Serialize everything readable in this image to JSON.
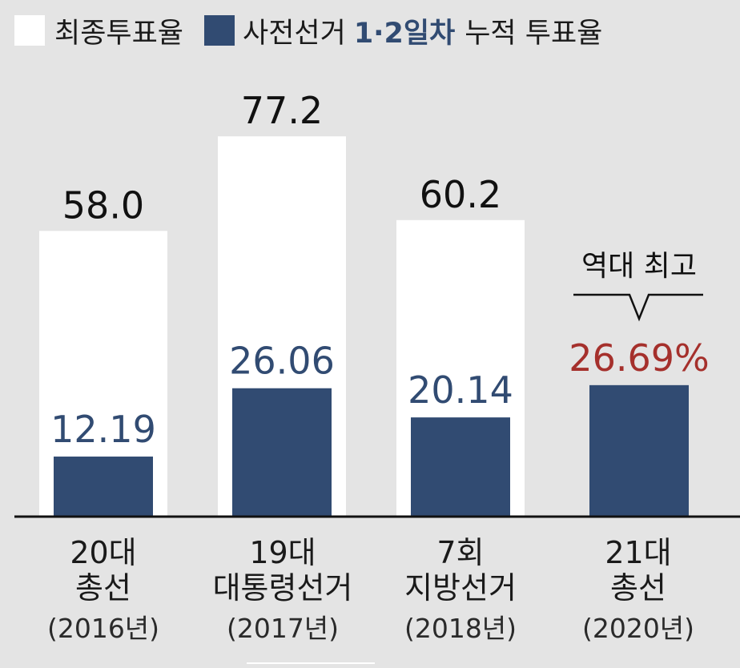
{
  "legend": {
    "final_label": "최종투표율",
    "early_prefix": "사전선거",
    "early_highlight": "1·2일차",
    "early_suffix": "누적 투표율"
  },
  "annotation": "역대 최고",
  "colors": {
    "final": "#ffffff",
    "early": "#314b72",
    "early_label": "#314b72",
    "highlight_label": "#a5302c",
    "final_label": "#111111"
  },
  "chart_data": {
    "type": "bar",
    "categories": [
      {
        "line1": "20대",
        "line2": "총선",
        "line3": "(2016년)"
      },
      {
        "line1": "19대",
        "line2": "대통령선거",
        "line3": "(2017년)"
      },
      {
        "line1": "7회",
        "line2": "지방선거",
        "line3": "(2018년)"
      },
      {
        "line1": "21대",
        "line2": "총선",
        "line3": "(2020년)"
      }
    ],
    "series": [
      {
        "name": "최종투표율",
        "values": [
          58.0,
          77.2,
          60.2,
          null
        ],
        "labels": [
          "58.0",
          "77.2",
          "60.2",
          ""
        ]
      },
      {
        "name": "사전선거 1·2일차 누적 투표율",
        "values": [
          12.19,
          26.06,
          20.14,
          26.69
        ],
        "labels": [
          "12.19",
          "26.06",
          "20.14",
          "26.69%"
        ]
      }
    ],
    "ylim": [
      0,
      100
    ]
  }
}
